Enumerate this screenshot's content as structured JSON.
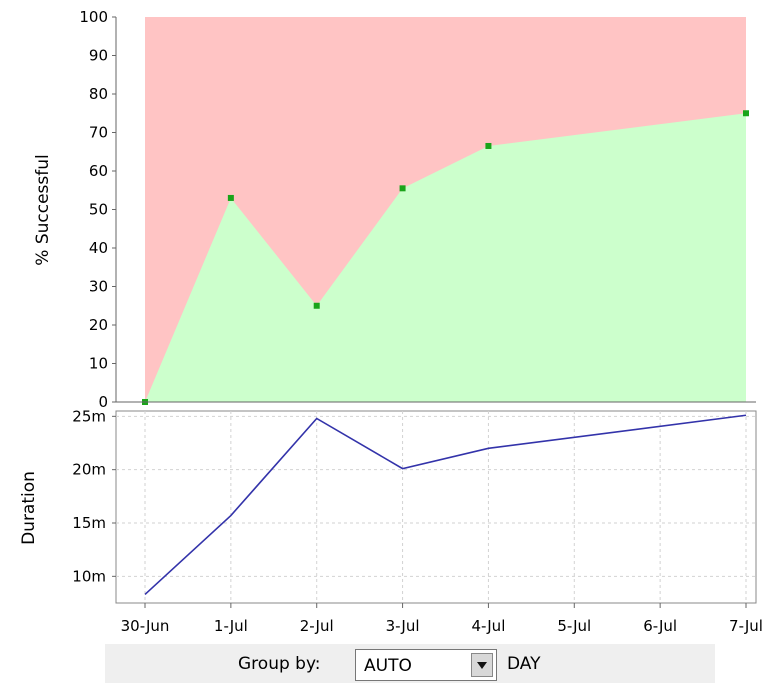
{
  "colors": {
    "success_fill": "#ccffcc",
    "failure_fill": "#ffc4c4",
    "point": "#1aa41a",
    "duration_line": "#3333aa",
    "grid": "#d2d2d2"
  },
  "chart_data": [
    {
      "type": "area",
      "ylabel": "% Successful",
      "categories": [
        "30-Jun",
        "1-Jul",
        "2-Jul",
        "3-Jul",
        "4-Jul",
        "5-Jul",
        "6-Jul",
        "7-Jul"
      ],
      "x": [
        "30-Jun",
        "1-Jul",
        "2-Jul",
        "3-Jul",
        "4-Jul",
        "7-Jul"
      ],
      "values": [
        0,
        53,
        25,
        55.5,
        66.5,
        75
      ],
      "ylim": [
        0,
        100
      ],
      "yticks": [
        "0",
        "10",
        "20",
        "30",
        "40",
        "50",
        "60",
        "70",
        "80",
        "90",
        "100"
      ],
      "grid": true
    },
    {
      "type": "line",
      "ylabel": "Duration",
      "x": [
        "30-Jun",
        "1-Jul",
        "2-Jul",
        "3-Jul",
        "4-Jul",
        "7-Jul"
      ],
      "values": [
        8.3,
        15.7,
        24.8,
        20.1,
        22,
        25.1
      ],
      "ylim": [
        7.5,
        25.5
      ],
      "ytick_values": [
        10,
        15,
        20,
        25
      ],
      "yticks": [
        "10m",
        "15m",
        "20m",
        "25m"
      ],
      "grid": true
    }
  ],
  "controls": {
    "group_by_label": "Group by:",
    "group_by_value": "AUTO",
    "unit_label": "DAY"
  }
}
